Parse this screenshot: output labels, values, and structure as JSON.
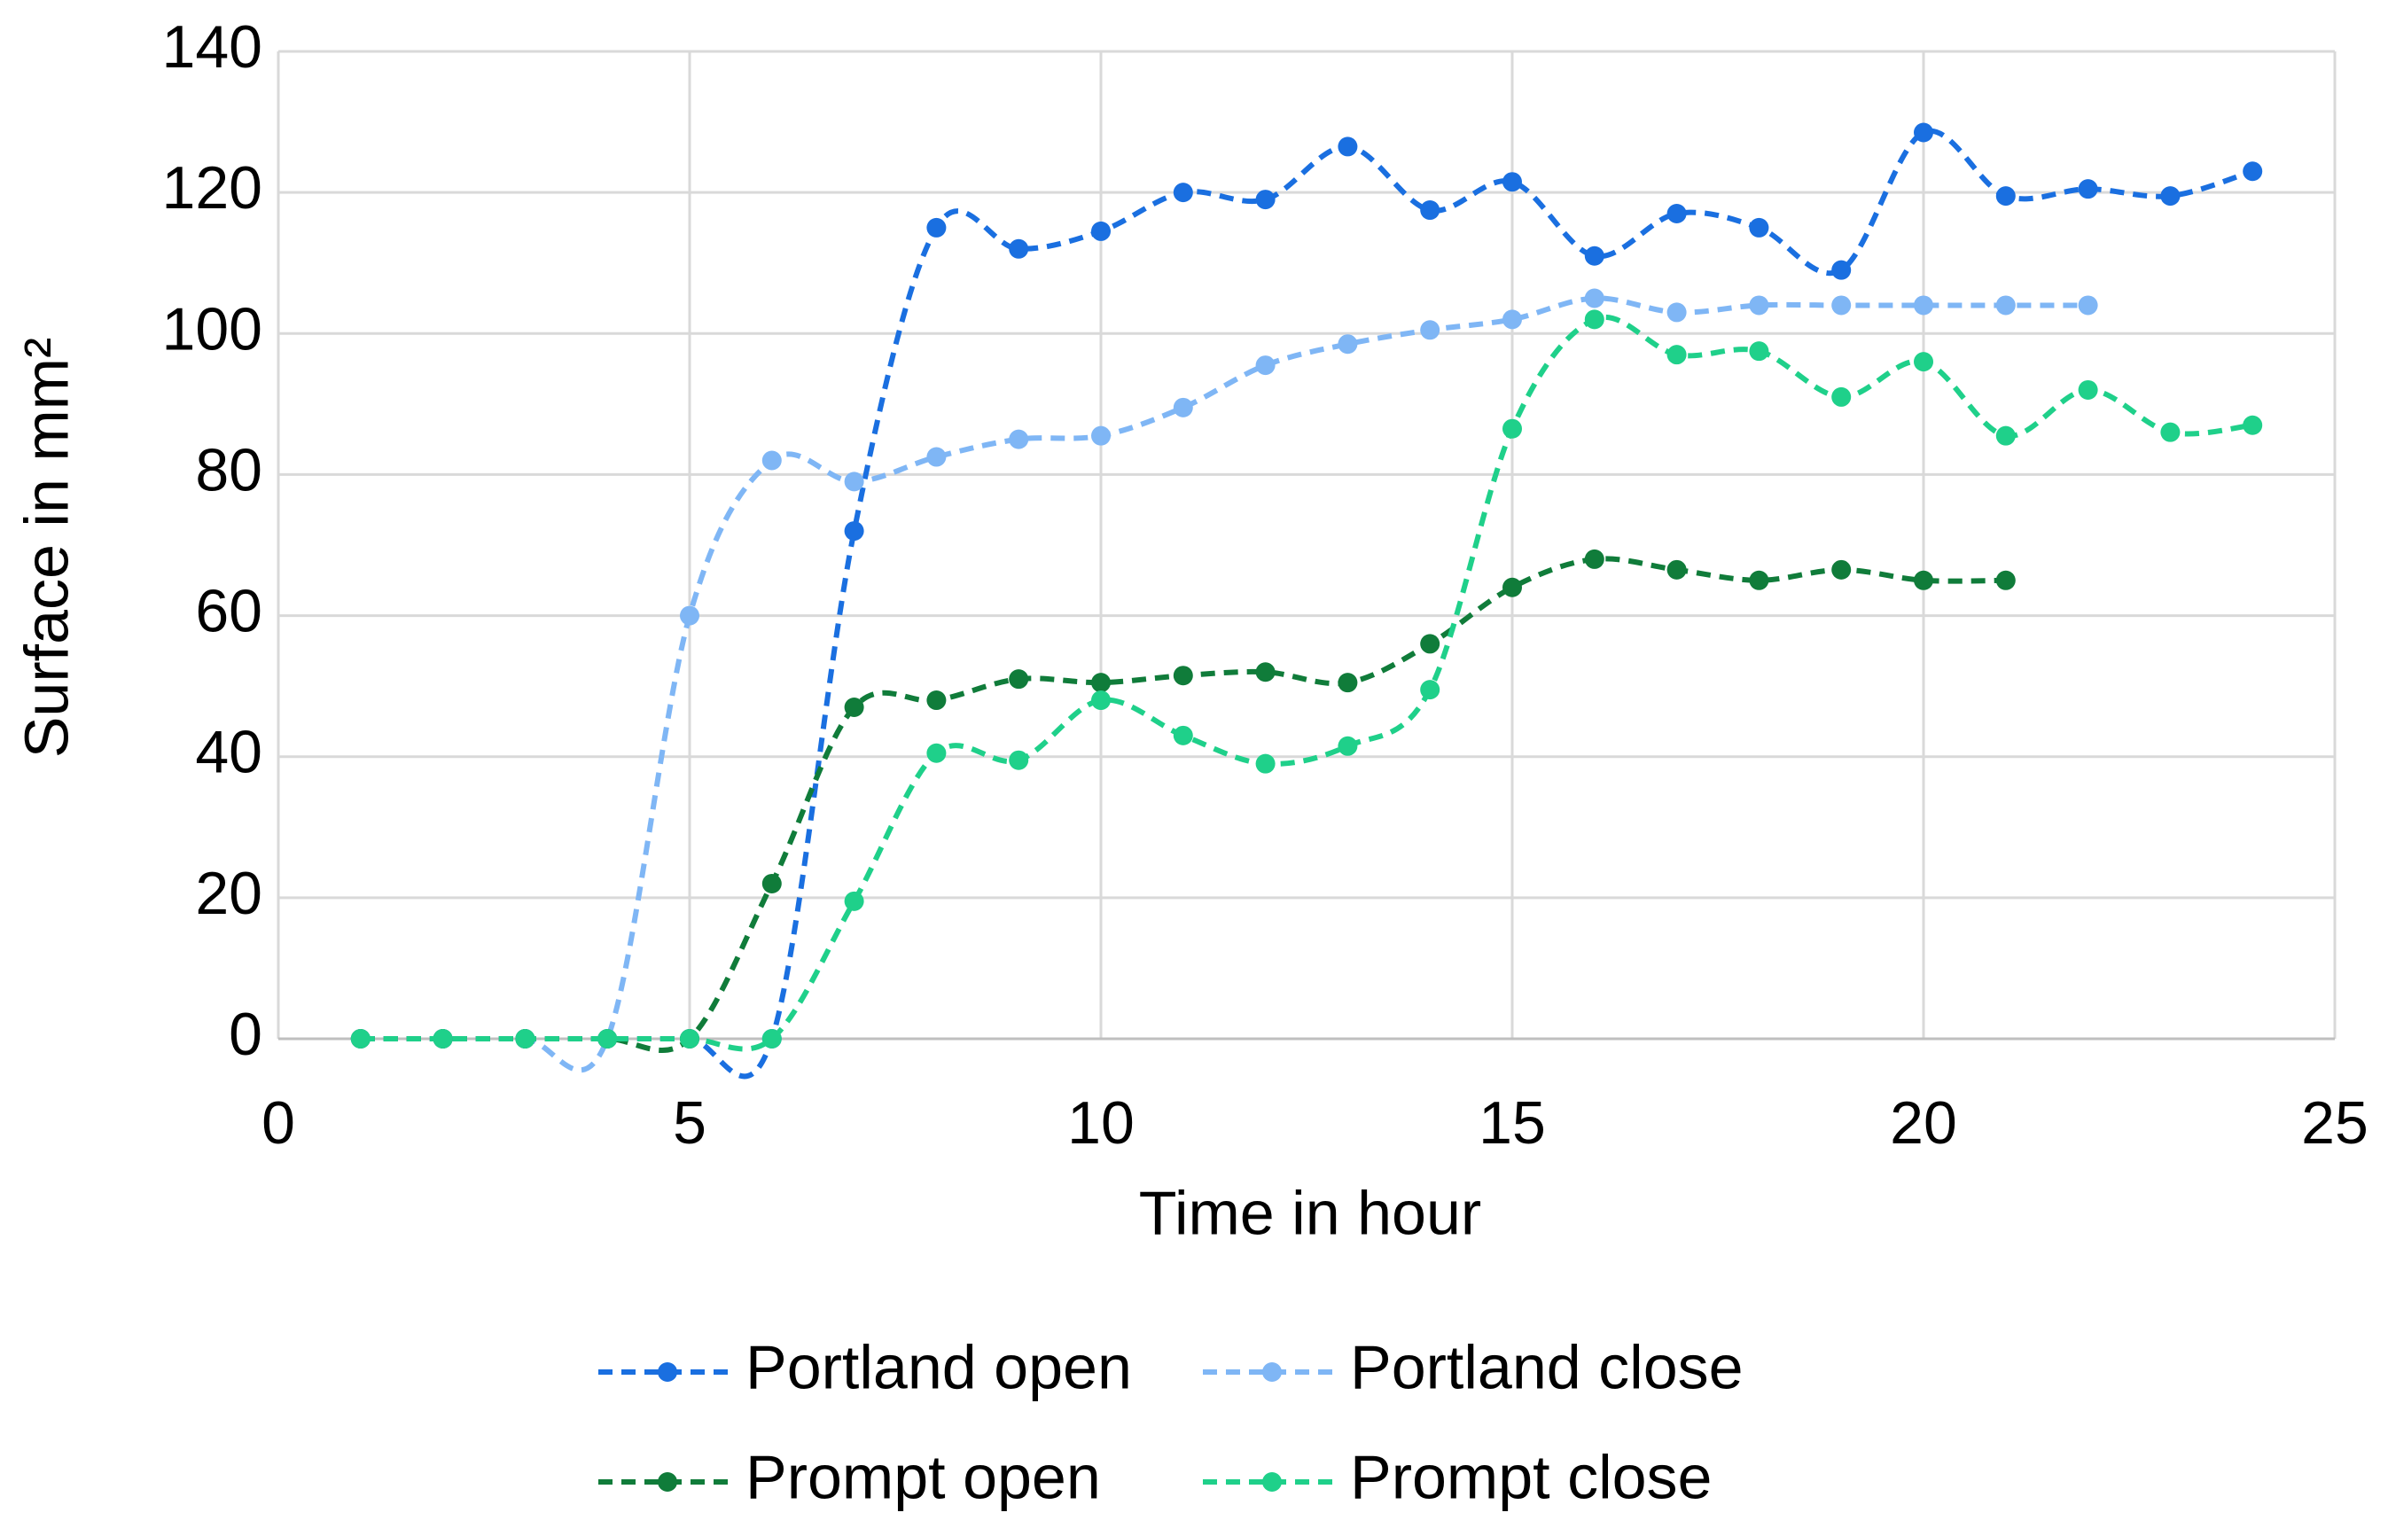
{
  "chart_data": {
    "type": "line",
    "x_label": "Time in hour",
    "y_label": "Surface in mm²",
    "xlim": [
      0,
      25
    ],
    "xticks": [
      0,
      5,
      10,
      15,
      20,
      25
    ],
    "ylim": [
      0,
      140
    ],
    "yticks": [
      0,
      20,
      40,
      60,
      80,
      100,
      120,
      140
    ],
    "grid": true,
    "legend": "bottom",
    "smooth": true,
    "dashed": true,
    "series": [
      {
        "name": "Portland open",
        "color": "#1a6fe0",
        "x": [
          1,
          2,
          3,
          4,
          5,
          6,
          7,
          8,
          9,
          10,
          11,
          12,
          13,
          14,
          15,
          16,
          17,
          18,
          19,
          20,
          21,
          22,
          23,
          24
        ],
        "values": [
          0,
          0,
          0,
          0,
          0,
          0,
          72,
          115,
          112,
          114.5,
          120,
          119,
          126.5,
          117.5,
          121.5,
          111,
          117,
          115,
          109,
          128.5,
          119.5,
          120.5,
          119.5,
          123
        ]
      },
      {
        "name": "Portland close",
        "color": "#7fb6f5",
        "x": [
          1,
          2,
          3,
          4,
          5,
          6,
          7,
          8,
          9,
          10,
          11,
          12,
          13,
          14,
          15,
          16,
          17,
          18,
          19,
          20,
          21,
          22
        ],
        "values": [
          0,
          0,
          0,
          0,
          60,
          82,
          79,
          82.5,
          85,
          85.5,
          89.5,
          95.5,
          98.5,
          100.5,
          102,
          105,
          103,
          104,
          104,
          104,
          104,
          104
        ]
      },
      {
        "name": "Prompt open",
        "color": "#107c3a",
        "x": [
          1,
          2,
          3,
          4,
          5,
          6,
          7,
          8,
          9,
          10,
          11,
          12,
          13,
          14,
          15,
          16,
          17,
          18,
          19,
          20,
          21
        ],
        "values": [
          0,
          0,
          0,
          0,
          0,
          22,
          47,
          48,
          51,
          50.5,
          51.5,
          52,
          50.5,
          56,
          64,
          68,
          66.5,
          65,
          66.5,
          65,
          65
        ]
      },
      {
        "name": "Prompt close",
        "color": "#1fd08a",
        "x": [
          1,
          2,
          3,
          4,
          5,
          6,
          7,
          8,
          9,
          10,
          11,
          12,
          13,
          14,
          15,
          16,
          17,
          18,
          19,
          20,
          21,
          22,
          23,
          24
        ],
        "values": [
          0,
          0,
          0,
          0,
          0,
          0,
          19.5,
          40.5,
          39.5,
          48,
          43,
          39,
          41.5,
          49.5,
          86.5,
          102,
          97,
          97.5,
          91,
          96,
          85.5,
          92,
          86,
          87
        ]
      }
    ]
  }
}
